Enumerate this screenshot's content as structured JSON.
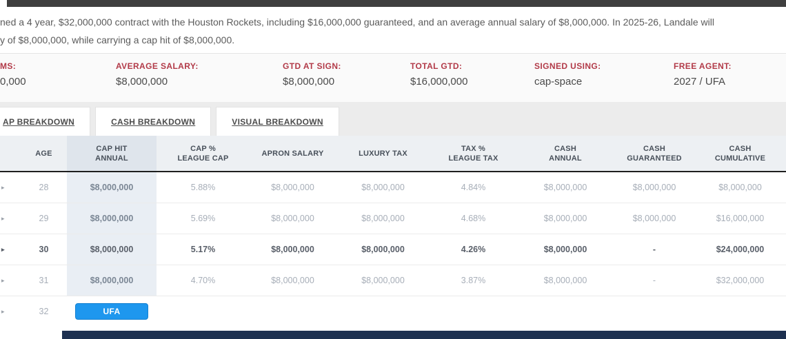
{
  "intro": {
    "line1": "ned a 4 year, $32,000,000 contract with the Houston Rockets, including $16,000,000 guaranteed, and an average annual salary of $8,000,000. In 2025-26, Landale will",
    "line2": "y of $8,000,000, while carrying a cap hit of $8,000,000."
  },
  "summary": {
    "items": [
      {
        "label": "MS:",
        "value": "0,000"
      },
      {
        "label": "AVERAGE SALARY:",
        "value": "$8,000,000"
      },
      {
        "label": "GTD AT SIGN:",
        "value": "$8,000,000"
      },
      {
        "label": "TOTAL GTD:",
        "value": "$16,000,000"
      },
      {
        "label": "SIGNED USING:",
        "value": "cap-space"
      },
      {
        "label": "FREE AGENT:",
        "value": "2027 / UFA"
      }
    ]
  },
  "tabs": [
    {
      "label": "AP BREAKDOWN"
    },
    {
      "label": "CASH BREAKDOWN"
    },
    {
      "label": "VISUAL BREAKDOWN"
    }
  ],
  "icons": {
    "expand_caret": "▸"
  },
  "table": {
    "columns": [
      {
        "line1": "AGE",
        "line2": ""
      },
      {
        "line1": "CAP HIT",
        "line2": "ANNUAL"
      },
      {
        "line1": "CAP %",
        "line2": "LEAGUE CAP"
      },
      {
        "line1": "APRON SALARY",
        "line2": ""
      },
      {
        "line1": "LUXURY TAX",
        "line2": ""
      },
      {
        "line1": "TAX %",
        "line2": "LEAGUE TAX"
      },
      {
        "line1": "CASH",
        "line2": "ANNUAL"
      },
      {
        "line1": "CASH",
        "line2": "GUARANTEED"
      },
      {
        "line1": "CASH",
        "line2": "CUMULATIVE"
      }
    ],
    "rows": [
      {
        "age": "28",
        "cap_hit": "$8,000,000",
        "cap_pct": "5.88%",
        "apron": "$8,000,000",
        "luxury": "$8,000,000",
        "tax_pct": "4.84%",
        "cash_annual": "$8,000,000",
        "cash_gtd": "$8,000,000",
        "cash_cum": "$8,000,000",
        "bold": false
      },
      {
        "age": "29",
        "cap_hit": "$8,000,000",
        "cap_pct": "5.69%",
        "apron": "$8,000,000",
        "luxury": "$8,000,000",
        "tax_pct": "4.68%",
        "cash_annual": "$8,000,000",
        "cash_gtd": "$8,000,000",
        "cash_cum": "$16,000,000",
        "bold": false
      },
      {
        "age": "30",
        "cap_hit": "$8,000,000",
        "cap_pct": "5.17%",
        "apron": "$8,000,000",
        "luxury": "$8,000,000",
        "tax_pct": "4.26%",
        "cash_annual": "$8,000,000",
        "cash_gtd": "-",
        "cash_cum": "$24,000,000",
        "bold": true
      },
      {
        "age": "31",
        "cap_hit": "$8,000,000",
        "cap_pct": "4.70%",
        "apron": "$8,000,000",
        "luxury": "$8,000,000",
        "tax_pct": "3.87%",
        "cash_annual": "$8,000,000",
        "cash_gtd": "-",
        "cash_cum": "$32,000,000",
        "bold": false
      },
      {
        "age": "32",
        "ufa": "UFA",
        "bold": false
      }
    ]
  },
  "colors": {
    "label_red": "#b23a48",
    "cap_hit_column_highlight": "#e9eef4",
    "ufa_button_blue": "#1e97ee",
    "top_bar_gray": "#3f3f3f",
    "bottom_bar_navy": "#1d3050"
  }
}
